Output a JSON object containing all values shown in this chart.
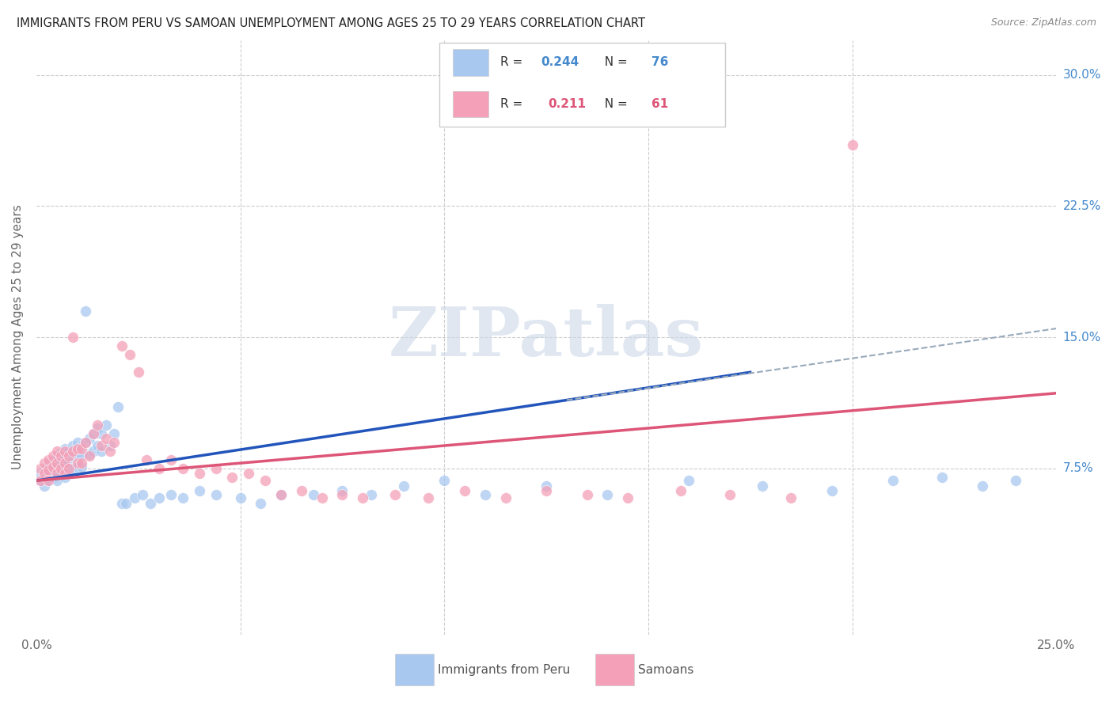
{
  "title": "IMMIGRANTS FROM PERU VS SAMOAN UNEMPLOYMENT AMONG AGES 25 TO 29 YEARS CORRELATION CHART",
  "source": "Source: ZipAtlas.com",
  "ylabel": "Unemployment Among Ages 25 to 29 years",
  "xlim": [
    0.0,
    0.25
  ],
  "ylim": [
    -0.02,
    0.32
  ],
  "ytick_labels_right": [
    "7.5%",
    "15.0%",
    "22.5%",
    "30.0%"
  ],
  "ytick_vals_right": [
    0.075,
    0.15,
    0.225,
    0.3
  ],
  "legend_label1": "Immigrants from Peru",
  "legend_label2": "Samoans",
  "blue_color": "#a8c8f0",
  "pink_color": "#f4a0b8",
  "blue_line_color": "#2255bb",
  "pink_line_color": "#dd5577",
  "dashed_line_color": "#99aabb",
  "watermark": "ZIPatlas",
  "watermark_color": "#ccd8e8",
  "peru_x": [
    0.001,
    0.001,
    0.002,
    0.002,
    0.002,
    0.003,
    0.003,
    0.003,
    0.004,
    0.004,
    0.004,
    0.005,
    0.005,
    0.005,
    0.005,
    0.006,
    0.006,
    0.006,
    0.007,
    0.007,
    0.007,
    0.007,
    0.008,
    0.008,
    0.008,
    0.009,
    0.009,
    0.009,
    0.01,
    0.01,
    0.01,
    0.011,
    0.011,
    0.011,
    0.012,
    0.012,
    0.013,
    0.013,
    0.014,
    0.014,
    0.015,
    0.015,
    0.016,
    0.016,
    0.017,
    0.018,
    0.019,
    0.02,
    0.021,
    0.022,
    0.024,
    0.026,
    0.028,
    0.03,
    0.033,
    0.036,
    0.04,
    0.044,
    0.05,
    0.055,
    0.06,
    0.068,
    0.075,
    0.082,
    0.09,
    0.1,
    0.11,
    0.125,
    0.14,
    0.16,
    0.178,
    0.195,
    0.21,
    0.222,
    0.232,
    0.24
  ],
  "peru_y": [
    0.072,
    0.068,
    0.075,
    0.07,
    0.065,
    0.078,
    0.072,
    0.068,
    0.08,
    0.074,
    0.07,
    0.082,
    0.076,
    0.072,
    0.068,
    0.084,
    0.078,
    0.073,
    0.086,
    0.08,
    0.075,
    0.07,
    0.085,
    0.078,
    0.072,
    0.088,
    0.082,
    0.075,
    0.09,
    0.083,
    0.076,
    0.088,
    0.082,
    0.076,
    0.165,
    0.09,
    0.092,
    0.083,
    0.095,
    0.085,
    0.098,
    0.088,
    0.095,
    0.085,
    0.1,
    0.088,
    0.095,
    0.11,
    0.055,
    0.055,
    0.058,
    0.06,
    0.055,
    0.058,
    0.06,
    0.058,
    0.062,
    0.06,
    0.058,
    0.055,
    0.06,
    0.06,
    0.062,
    0.06,
    0.065,
    0.068,
    0.06,
    0.065,
    0.06,
    0.068,
    0.065,
    0.062,
    0.068,
    0.07,
    0.065,
    0.068
  ],
  "samoan_x": [
    0.001,
    0.001,
    0.002,
    0.002,
    0.003,
    0.003,
    0.003,
    0.004,
    0.004,
    0.005,
    0.005,
    0.005,
    0.006,
    0.006,
    0.007,
    0.007,
    0.007,
    0.008,
    0.008,
    0.009,
    0.009,
    0.01,
    0.01,
    0.011,
    0.011,
    0.012,
    0.013,
    0.014,
    0.015,
    0.016,
    0.017,
    0.018,
    0.019,
    0.021,
    0.023,
    0.025,
    0.027,
    0.03,
    0.033,
    0.036,
    0.04,
    0.044,
    0.048,
    0.052,
    0.056,
    0.06,
    0.065,
    0.07,
    0.075,
    0.08,
    0.088,
    0.096,
    0.105,
    0.115,
    0.125,
    0.135,
    0.145,
    0.158,
    0.17,
    0.185,
    0.2
  ],
  "samoan_y": [
    0.075,
    0.068,
    0.078,
    0.072,
    0.08,
    0.074,
    0.068,
    0.082,
    0.076,
    0.085,
    0.078,
    0.072,
    0.082,
    0.075,
    0.085,
    0.078,
    0.072,
    0.082,
    0.075,
    0.085,
    0.15,
    0.086,
    0.078,
    0.086,
    0.078,
    0.09,
    0.082,
    0.095,
    0.1,
    0.088,
    0.092,
    0.085,
    0.09,
    0.145,
    0.14,
    0.13,
    0.08,
    0.075,
    0.08,
    0.075,
    0.072,
    0.075,
    0.07,
    0.072,
    0.068,
    0.06,
    0.062,
    0.058,
    0.06,
    0.058,
    0.06,
    0.058,
    0.062,
    0.058,
    0.062,
    0.06,
    0.058,
    0.062,
    0.06,
    0.058,
    0.26
  ]
}
